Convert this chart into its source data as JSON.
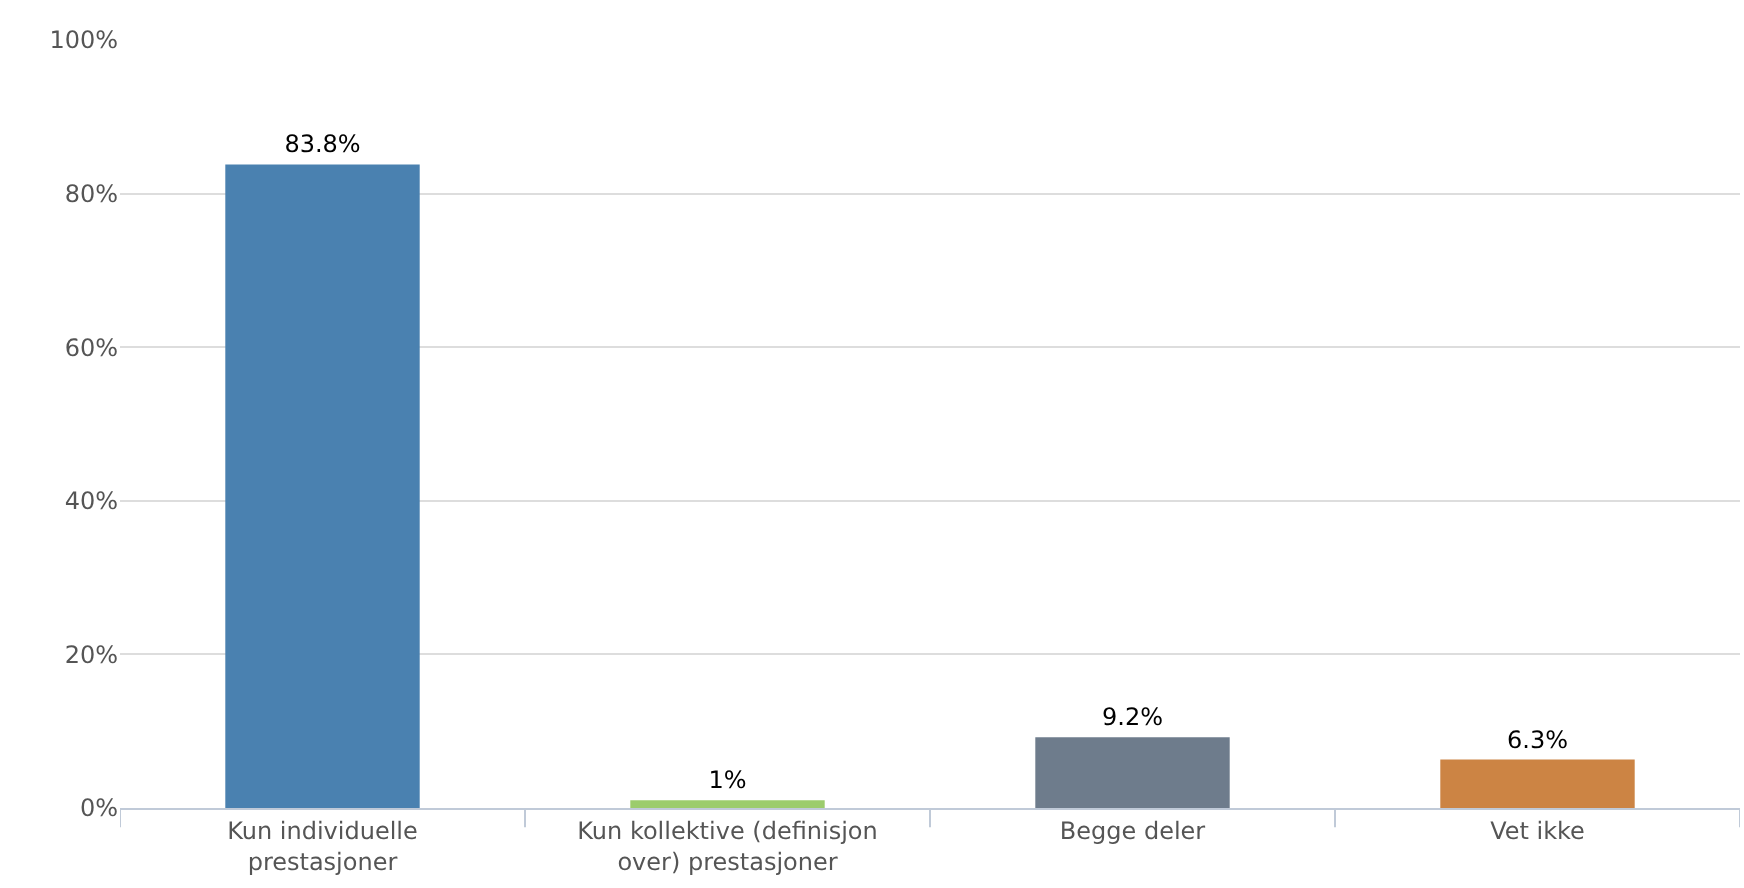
{
  "chart_data": {
    "type": "bar",
    "categories": [
      "Kun individuelle prestasjoner",
      "Kun kollektive (definisjon over) prestasjoner",
      "Begge deler",
      "Vet ikke"
    ],
    "values": [
      83.8,
      1,
      9.2,
      6.3
    ],
    "colors": [
      "#4a81b0",
      "#9ccc6c",
      "#6e7c8c",
      "#cc8444"
    ],
    "value_labels": [
      "83.8%",
      "1%",
      "9.2%",
      "6.3%"
    ],
    "ylim": [
      0,
      100
    ],
    "yticks": [
      {
        "value": 0,
        "label": "0%"
      },
      {
        "value": 20,
        "label": "20%"
      },
      {
        "value": 40,
        "label": "40%"
      },
      {
        "value": 60,
        "label": "60%"
      },
      {
        "value": 80,
        "label": "80%"
      },
      {
        "value": 100,
        "label": "100%"
      }
    ],
    "grid": "y",
    "legend": false
  }
}
